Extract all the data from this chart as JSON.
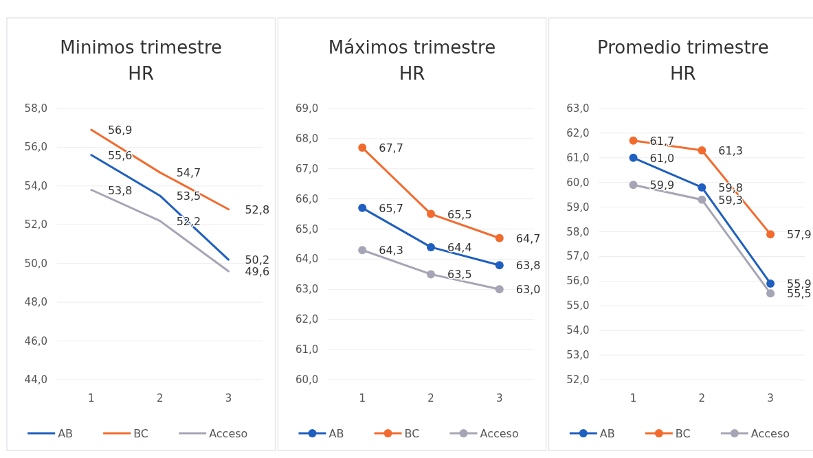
{
  "chart_data": [
    {
      "type": "line",
      "title": "Minimos trimestre HR",
      "categories": [
        "1",
        "2",
        "3"
      ],
      "ylim": [
        44,
        58
      ],
      "yticks": [
        {
          "value": 44,
          "label": "44,0"
        },
        {
          "value": 46,
          "label": "46,0"
        },
        {
          "value": 48,
          "label": "48,0"
        },
        {
          "value": 50,
          "label": "50,0"
        },
        {
          "value": 52,
          "label": "52,0"
        },
        {
          "value": 54,
          "label": "54,0"
        },
        {
          "value": 56,
          "label": "56,0"
        },
        {
          "value": 58,
          "label": "58,0"
        }
      ],
      "grid": "y",
      "legend": "bottom",
      "marker": "none",
      "series": [
        {
          "name": "AB",
          "color": "#1f5fbf",
          "values": [
            55.6,
            53.5,
            50.2
          ],
          "value_labels": [
            "55,6",
            "53,5",
            "50,2"
          ]
        },
        {
          "name": "BC",
          "color": "#f26b2e",
          "values": [
            56.9,
            54.7,
            52.8
          ],
          "value_labels": [
            "56,9",
            "54,7",
            "52,8"
          ]
        },
        {
          "name": "Acceso",
          "color": "#a5a5b5",
          "values": [
            53.8,
            52.2,
            49.6
          ],
          "value_labels": [
            "53,8",
            "52,2",
            "49,6"
          ]
        }
      ]
    },
    {
      "type": "line",
      "title": "Máximos trimestre HR",
      "categories": [
        "1",
        "2",
        "3"
      ],
      "ylim": [
        60,
        69
      ],
      "yticks": [
        {
          "value": 60,
          "label": "60,0"
        },
        {
          "value": 61,
          "label": "61,0"
        },
        {
          "value": 62,
          "label": "62,0"
        },
        {
          "value": 63,
          "label": "63,0"
        },
        {
          "value": 64,
          "label": "64,0"
        },
        {
          "value": 65,
          "label": "65,0"
        },
        {
          "value": 66,
          "label": "66,0"
        },
        {
          "value": 67,
          "label": "67,0"
        },
        {
          "value": 68,
          "label": "68,0"
        },
        {
          "value": 69,
          "label": "69,0"
        }
      ],
      "grid": "y",
      "legend": "bottom",
      "marker": "circle",
      "series": [
        {
          "name": "AB",
          "color": "#1f5fbf",
          "values": [
            65.7,
            64.4,
            63.8
          ],
          "value_labels": [
            "65,7",
            "64,4",
            "63,8"
          ]
        },
        {
          "name": "BC",
          "color": "#f26b2e",
          "values": [
            67.7,
            65.5,
            64.7
          ],
          "value_labels": [
            "67,7",
            "65,5",
            "64,7"
          ]
        },
        {
          "name": "Acceso",
          "color": "#a5a5b5",
          "values": [
            64.3,
            63.5,
            63.0
          ],
          "value_labels": [
            "64,3",
            "63,5",
            "63,0"
          ]
        }
      ]
    },
    {
      "type": "line",
      "title": "Promedio trimestre HR",
      "categories": [
        "1",
        "2",
        "3"
      ],
      "ylim": [
        52,
        63
      ],
      "yticks": [
        {
          "value": 52,
          "label": "52,0"
        },
        {
          "value": 53,
          "label": "53,0"
        },
        {
          "value": 54,
          "label": "54,0"
        },
        {
          "value": 55,
          "label": "55,0"
        },
        {
          "value": 56,
          "label": "56,0"
        },
        {
          "value": 57,
          "label": "57,0"
        },
        {
          "value": 58,
          "label": "58,0"
        },
        {
          "value": 59,
          "label": "59,0"
        },
        {
          "value": 60,
          "label": "60,0"
        },
        {
          "value": 61,
          "label": "61,0"
        },
        {
          "value": 62,
          "label": "62,0"
        },
        {
          "value": 63,
          "label": "63,0"
        }
      ],
      "grid": "y",
      "legend": "bottom",
      "marker": "circle",
      "series": [
        {
          "name": "AB",
          "color": "#1f5fbf",
          "values": [
            61.0,
            59.8,
            55.9
          ],
          "value_labels": [
            "61,0",
            "59,8",
            "55,9"
          ]
        },
        {
          "name": "BC",
          "color": "#f26b2e",
          "values": [
            61.7,
            61.3,
            57.9
          ],
          "value_labels": [
            "61,7",
            "61,3",
            "57,9"
          ]
        },
        {
          "name": "Acceso",
          "color": "#a5a5b5",
          "values": [
            59.9,
            59.3,
            55.5
          ],
          "value_labels": [
            "59,9",
            "59,3",
            "55,5"
          ]
        }
      ]
    }
  ]
}
